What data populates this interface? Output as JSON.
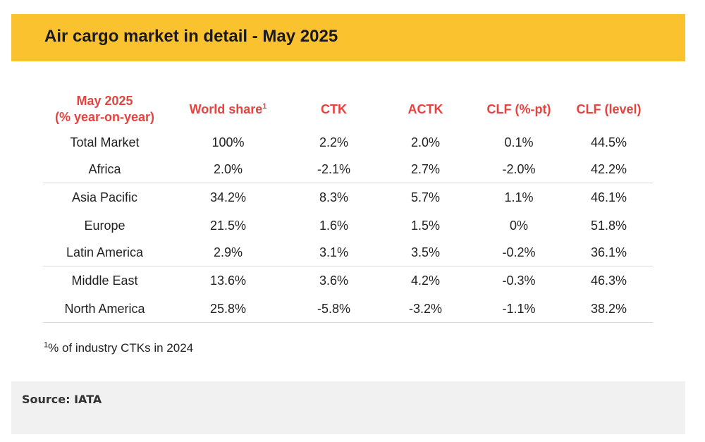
{
  "banner": {
    "title": "Air cargo market in detail - May 2025",
    "color": "#f9c22e"
  },
  "table": {
    "header_color": "#e8423f",
    "headers": {
      "period_line1": "May 2025",
      "period_line2": "(% year-on-year)",
      "world_share": "World share",
      "world_share_sup": "1",
      "ctk": "CTK",
      "actk": "ACTK",
      "clf_pt": "CLF (%-pt)",
      "clf_level": "CLF (level)"
    },
    "rows": [
      {
        "region": "Total Market",
        "world_share": "100%",
        "ctk": "2.2%",
        "actk": "2.0%",
        "clf_pt": "0.1%",
        "clf_level": "44.5%"
      },
      {
        "region": "Africa",
        "world_share": "2.0%",
        "ctk": "-2.1%",
        "actk": "2.7%",
        "clf_pt": "-2.0%",
        "clf_level": "42.2%"
      },
      {
        "region": "Asia Pacific",
        "world_share": "34.2%",
        "ctk": "8.3%",
        "actk": "5.7%",
        "clf_pt": "1.1%",
        "clf_level": "46.1%"
      },
      {
        "region": "Europe",
        "world_share": "21.5%",
        "ctk": "1.6%",
        "actk": "1.5%",
        "clf_pt": "0%",
        "clf_level": "51.8%"
      },
      {
        "region": "Latin America",
        "world_share": "2.9%",
        "ctk": "3.1%",
        "actk": "3.5%",
        "clf_pt": "-0.2%",
        "clf_level": "36.1%"
      },
      {
        "region": "Middle East",
        "world_share": "13.6%",
        "ctk": "3.6%",
        "actk": "4.2%",
        "clf_pt": "-0.3%",
        "clf_level": "46.3%"
      },
      {
        "region": "North America",
        "world_share": "25.8%",
        "ctk": "-5.8%",
        "actk": "-3.2%",
        "clf_pt": "-1.1%",
        "clf_level": "38.2%"
      }
    ]
  },
  "footnote": {
    "sup": "1",
    "text": "% of industry CTKs in 2024"
  },
  "source": {
    "text": "Source: IATA"
  }
}
